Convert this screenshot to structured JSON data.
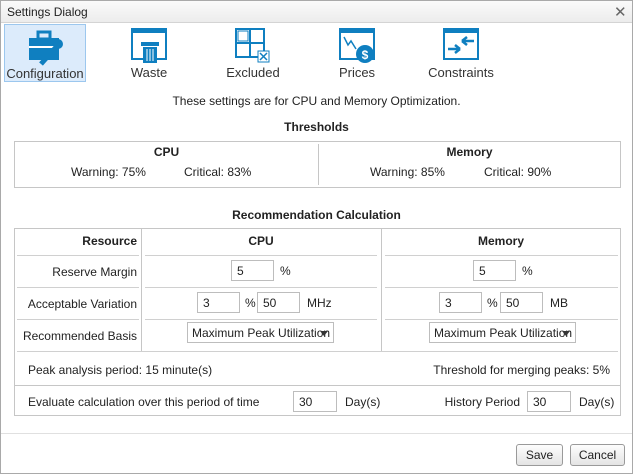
{
  "title": "Settings Dialog",
  "accent": "#0f7fc0",
  "tabs": [
    {
      "label": "Configuration",
      "icon": "toolbox-wrench-icon",
      "selected": true
    },
    {
      "label": "Waste",
      "icon": "trash-window-icon"
    },
    {
      "label": "Excluded",
      "icon": "excluded-grid-icon"
    },
    {
      "label": "Prices",
      "icon": "price-chart-icon"
    },
    {
      "label": "Constraints",
      "icon": "constraints-arrows-icon"
    }
  ],
  "description": "These settings are for CPU and Memory Optimization.",
  "thresholds": {
    "heading": "Thresholds",
    "cpu": {
      "title": "CPU",
      "warning": "Warning: 75%",
      "critical": "Critical: 83%"
    },
    "memory": {
      "title": "Memory",
      "warning": "Warning: 85%",
      "critical": "Critical: 90%"
    }
  },
  "recommendation": {
    "heading": "Recommendation Calculation",
    "headers": {
      "resource": "Resource",
      "cpu": "CPU",
      "memory": "Memory"
    },
    "reserve_margin": {
      "label": "Reserve Margin",
      "cpu": "5",
      "memory": "5",
      "unit": "%"
    },
    "acceptable_variation": {
      "label": "Acceptable Variation",
      "cpu_pct": "3",
      "cpu_abs": "50",
      "cpu_unit": "MHz",
      "memory_pct": "3",
      "memory_abs": "50",
      "memory_unit": "MB",
      "pct_unit": "%"
    },
    "recommended_basis": {
      "label": "Recommended Basis",
      "cpu": "Maximum Peak Utilization",
      "memory": "Maximum Peak Utilization"
    },
    "peak_analysis": "Peak analysis period: 15 minute(s)",
    "merge_threshold": "Threshold for merging peaks: 5%",
    "evaluate_label": "Evaluate calculation over this period of time",
    "evaluate_value": "30",
    "evaluate_unit": "Day(s)",
    "history_label": "History Period",
    "history_value": "30",
    "history_unit": "Day(s)"
  },
  "buttons": {
    "save": "Save",
    "cancel": "Cancel"
  }
}
